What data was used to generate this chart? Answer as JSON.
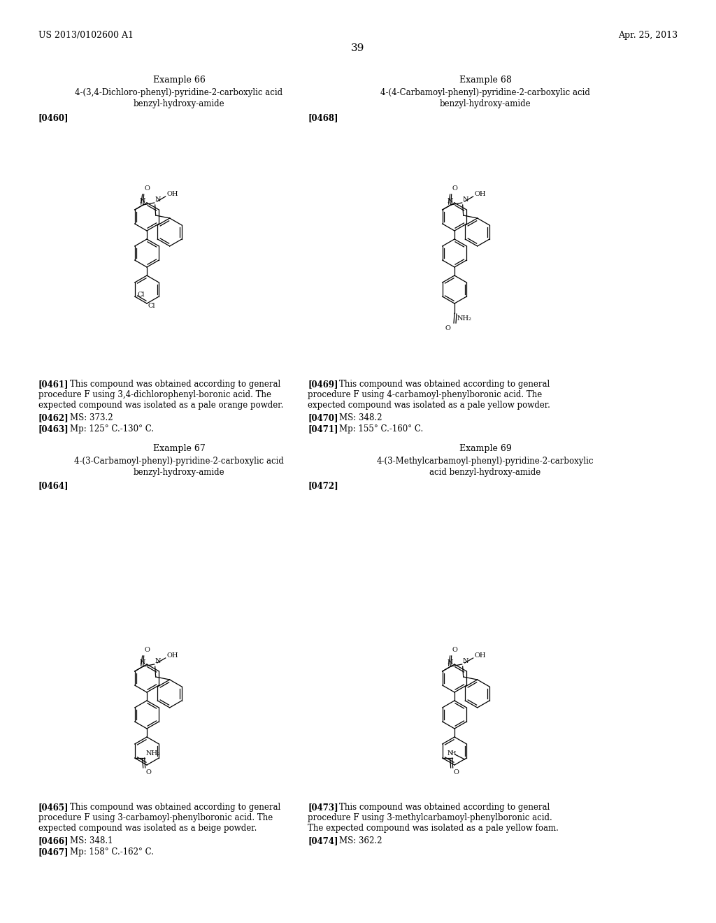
{
  "page_header_left": "US 2013/0102600 A1",
  "page_header_right": "Apr. 25, 2013",
  "page_number": "39",
  "bg_color": "#ffffff",
  "text_color": "#000000",
  "ex66_title": "Example 66",
  "ex66_name1": "4-(3,4-Dichloro-phenyl)-pyridine-2-carboxylic acid",
  "ex66_name2": "benzyl-hydroxy-amide",
  "ex66_ref": "[0460]",
  "ex66_p_num": "[0461]",
  "ex66_p1": "This compound was obtained according to general",
  "ex66_p2": "procedure F using 3,4-dichlorophenyl-boronic acid. The",
  "ex66_p3": "expected compound was isolated as a pale orange powder.",
  "ex66_ms_num": "[0462]",
  "ex66_ms": "MS: 373.2",
  "ex66_mp_num": "[0463]",
  "ex66_mp": "Mp: 125° C.-130° C.",
  "ex67_title": "Example 67",
  "ex67_name1": "4-(3-Carbamoyl-phenyl)-pyridine-2-carboxylic acid",
  "ex67_name2": "benzyl-hydroxy-amide",
  "ex67_ref": "[0464]",
  "ex67_p_num": "[0465]",
  "ex67_p1": "This compound was obtained according to general",
  "ex67_p2": "procedure F using 3-carbamoyl-phenylboronic acid. The",
  "ex67_p3": "expected compound was isolated as a beige powder.",
  "ex67_ms_num": "[0466]",
  "ex67_ms": "MS: 348.1",
  "ex67_mp_num": "[0467]",
  "ex67_mp": "Mp: 158° C.-162° C.",
  "ex68_title": "Example 68",
  "ex68_name1": "4-(4-Carbamoyl-phenyl)-pyridine-2-carboxylic acid",
  "ex68_name2": "benzyl-hydroxy-amide",
  "ex68_ref": "[0468]",
  "ex68_p_num": "[0469]",
  "ex68_p1": "This compound was obtained according to general",
  "ex68_p2": "procedure F using 4-carbamoyl-phenylboronic acid. The",
  "ex68_p3": "expected compound was isolated as a pale yellow powder.",
  "ex68_ms_num": "[0470]",
  "ex68_ms": "MS: 348.2",
  "ex68_mp_num": "[0471]",
  "ex68_mp": "Mp: 155° C.-160° C.",
  "ex69_title": "Example 69",
  "ex69_name1": "4-(3-Methylcarbamoyl-phenyl)-pyridine-2-carboxylic",
  "ex69_name2": "acid benzyl-hydroxy-amide",
  "ex69_ref": "[0472]",
  "ex69_p_num": "[0473]",
  "ex69_p1": "This compound was obtained according to general",
  "ex69_p2": "procedure F using 3-methylcarbamoyl-phenylboronic acid.",
  "ex69_p3": "The expected compound was isolated as a pale yellow foam.",
  "ex69_ms_num": "[0474]",
  "ex69_ms": "MS: 362.2"
}
